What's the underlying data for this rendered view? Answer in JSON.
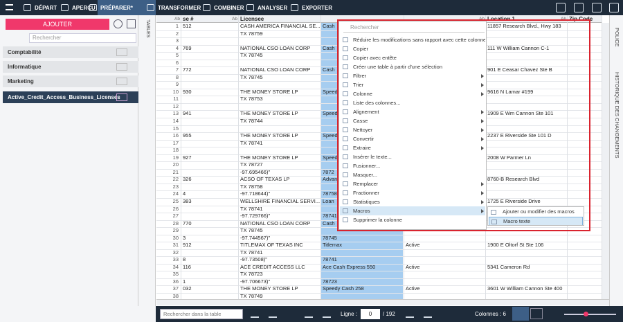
{
  "toolbar": {
    "tabs": [
      "DÉPART",
      "APERÇU",
      "PRÉPARER*",
      "TRANSFORMER",
      "COMBINER",
      "ANALYSER",
      "EXPORTER"
    ],
    "active": 2
  },
  "sidebar": {
    "add_button": "AJOUTER",
    "search_placeholder": "Rechercher",
    "groups": [
      "Comptabilité",
      "Informatique",
      "Marketing",
      "Active_Credit_Access_Business_Licenses"
    ],
    "selected": 3,
    "tab": "TABLES"
  },
  "grid": {
    "type_label": "Ab",
    "headers": [
      "se #",
      "Licensee",
      null,
      null,
      "Location 1",
      "Zip Code"
    ],
    "rows": [
      [
        1,
        "512",
        "CASH AMERICA FINANCIAL SE...",
        "Cash",
        null,
        "11857 Research Blvd., Hwy 183",
        null
      ],
      [
        2,
        null,
        "TX 78759",
        null,
        null,
        null,
        null
      ],
      [
        3,
        null,
        null,
        null,
        null,
        null,
        null
      ],
      [
        4,
        "769",
        "NATIONAL CSO LOAN CORP",
        "Cash",
        null,
        "111 W William Cannon C-1",
        null
      ],
      [
        5,
        null,
        "TX 78745",
        null,
        null,
        null,
        null
      ],
      [
        6,
        null,
        null,
        null,
        null,
        null,
        null
      ],
      [
        7,
        "772",
        "NATIONAL CSO LOAN CORP",
        "Cash",
        null,
        "901 E Ceasar Chavez Ste B",
        null
      ],
      [
        8,
        null,
        "TX 78745",
        null,
        null,
        null,
        null
      ],
      [
        9,
        null,
        null,
        null,
        null,
        null,
        null
      ],
      [
        10,
        "930",
        "THE MONEY STORE LP",
        "Speed",
        null,
        "9616 N Lamar #199",
        null
      ],
      [
        11,
        null,
        "TX 78753",
        null,
        null,
        null,
        null
      ],
      [
        12,
        null,
        null,
        null,
        null,
        null,
        null
      ],
      [
        13,
        "941",
        "THE MONEY STORE LP",
        "Speed",
        null,
        "1909 E Wm Cannon Ste 101",
        null
      ],
      [
        14,
        null,
        "TX 78744",
        null,
        null,
        null,
        null
      ],
      [
        15,
        null,
        null,
        null,
        null,
        null,
        null
      ],
      [
        16,
        "955",
        "THE MONEY STORE LP",
        "Speed",
        null,
        "2237 E Riverside Ste 101 D",
        null
      ],
      [
        17,
        null,
        "TX 78741",
        null,
        null,
        null,
        null
      ],
      [
        18,
        null,
        null,
        null,
        null,
        null,
        null
      ],
      [
        19,
        "927",
        "THE MONEY STORE LP",
        "Speed",
        null,
        "2008 W Parmer Ln",
        null
      ],
      [
        20,
        null,
        "TX 78727",
        null,
        null,
        null,
        null
      ],
      [
        21,
        null,
        "-97.695466)\"",
        "7872",
        null,
        null,
        null
      ],
      [
        22,
        "326",
        "ACSO OF TEXAS LP",
        "Advan",
        null,
        "8760-B Research Blvd",
        null
      ],
      [
        23,
        null,
        "TX 78758",
        null,
        null,
        null,
        null
      ],
      [
        24,
        "4",
        "-97.718644)\"",
        "78758",
        null,
        null,
        null
      ],
      [
        25,
        "383",
        "WELLSHIRE FINANCIAL SERVI...",
        "Loan",
        null,
        "1725 E Riverside Drive",
        null
      ],
      [
        26,
        null,
        "TX 78741",
        null,
        null,
        null,
        null
      ],
      [
        27,
        null,
        "-97.729766)\"",
        "78741",
        null,
        null,
        null
      ],
      [
        28,
        "770",
        "NATIONAL CSO LOAN CORP",
        "Cash",
        null,
        null,
        null
      ],
      [
        29,
        null,
        "TX 78745",
        null,
        null,
        null,
        null
      ],
      [
        30,
        "3",
        "-97.744567)\"",
        "78745",
        null,
        null,
        null
      ],
      [
        31,
        "912",
        "TITLEMAX OF TEXAS INC",
        "Titlemax",
        "Active",
        "1900 E Oltorf St Ste 106",
        null
      ],
      [
        32,
        null,
        "TX 78741",
        null,
        null,
        null,
        null
      ],
      [
        33,
        "8",
        "-97.73508)\"",
        "78741",
        null,
        null,
        null
      ],
      [
        34,
        "116",
        "ACE CREDIT ACCESS LLC",
        "Ace Cash Express 550",
        "Active",
        "5341 Cameron Rd",
        null
      ],
      [
        35,
        null,
        "TX 78723",
        null,
        null,
        null,
        null
      ],
      [
        36,
        "1",
        "-97.706673)\"",
        "78723",
        null,
        null,
        null
      ],
      [
        37,
        "032",
        "THE MONEY STORE LP",
        "Speedy Cash 258",
        "Active",
        "3601 W William Cannon Ste 400",
        null
      ],
      [
        38,
        null,
        "TX 78749",
        null,
        null,
        null,
        null
      ]
    ]
  },
  "context_menu": {
    "search_placeholder": "Rechercher",
    "items": [
      {
        "label": "Réduire les modifications sans rapport avec cette colonne",
        "submenu": false
      },
      {
        "label": "Copier",
        "submenu": false
      },
      {
        "label": "Copier avec entête",
        "submenu": false
      },
      {
        "label": "Créer une table à partir d'une sélection",
        "submenu": false
      },
      {
        "label": "Filtrer",
        "submenu": true
      },
      {
        "label": "Trier",
        "submenu": true
      },
      {
        "label": "Colonne",
        "submenu": true
      },
      {
        "label": "Liste des colonnes...",
        "submenu": false
      },
      {
        "label": "Alignement",
        "submenu": true
      },
      {
        "label": "Casse",
        "submenu": true
      },
      {
        "label": "Nettoyer",
        "submenu": true
      },
      {
        "label": "Convertir",
        "submenu": true
      },
      {
        "label": "Extraire",
        "submenu": true
      },
      {
        "label": "Insérer le texte...",
        "submenu": false
      },
      {
        "label": "Fusionner...",
        "submenu": false
      },
      {
        "label": "Masquer...",
        "submenu": false
      },
      {
        "label": "Remplacer",
        "submenu": true
      },
      {
        "label": "Fractionner",
        "submenu": true
      },
      {
        "label": "Statistiques",
        "submenu": true
      },
      {
        "label": "Macros",
        "submenu": true
      },
      {
        "label": "Supprimer la colonne",
        "submenu": false
      }
    ],
    "active": 19,
    "submenu": [
      "Ajouter ou modifier des macros",
      "Macro texte"
    ],
    "submenu_active": 1
  },
  "right_tabs": [
    "POLICE",
    "HISTORIQUE DES CHANGEMENTS"
  ],
  "footer": {
    "search_placeholder": "Rechercher dans la table",
    "row_label": "Ligne :",
    "row_value": "0",
    "row_total": "/ 192",
    "columns": "Colonnes : 6"
  }
}
